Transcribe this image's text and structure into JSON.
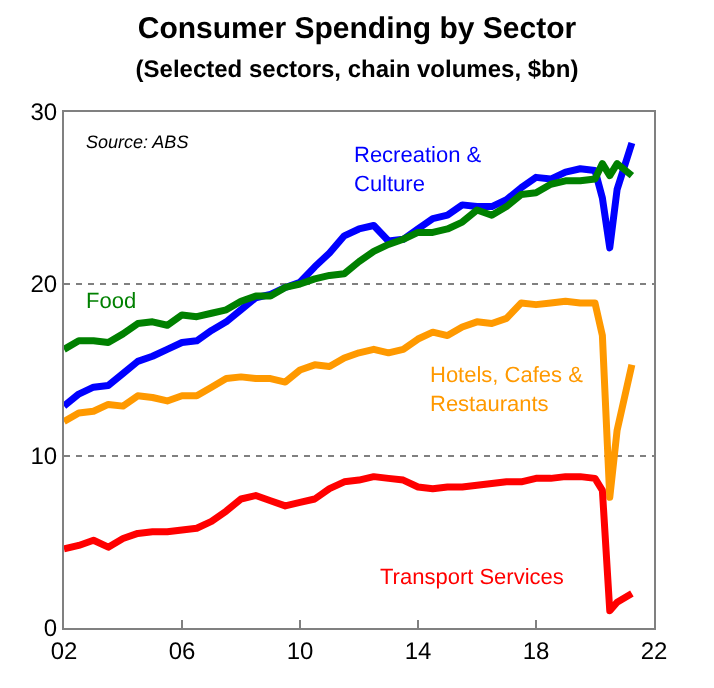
{
  "chart_data": {
    "type": "line",
    "title": "Consumer Spending by Sector",
    "subtitle": "(Selected sectors, chain volumes, $bn)",
    "annotations": [
      "Source: ABS"
    ],
    "xlim": [
      2002,
      2022
    ],
    "xticks": [
      {
        "value": 2002,
        "label": "02"
      },
      {
        "value": 2006,
        "label": "06"
      },
      {
        "value": 2010,
        "label": "10"
      },
      {
        "value": 2014,
        "label": "14"
      },
      {
        "value": 2018,
        "label": "18"
      },
      {
        "value": 2022,
        "label": "22"
      }
    ],
    "ylim": [
      0,
      30
    ],
    "yticks": [
      0,
      10,
      20,
      30
    ],
    "grid": "y",
    "legend": false,
    "line_style": "solid",
    "marker": "none",
    "x": [
      2002,
      2002.5,
      2003,
      2003.5,
      2004,
      2004.5,
      2005,
      2005.5,
      2006,
      2006.5,
      2007,
      2007.5,
      2008,
      2008.5,
      2009,
      2009.5,
      2010,
      2010.5,
      2011,
      2011.5,
      2012,
      2012.5,
      2013,
      2013.5,
      2014,
      2014.5,
      2015,
      2015.5,
      2016,
      2016.5,
      2017,
      2017.5,
      2018,
      2018.5,
      2019,
      2019.5,
      2020,
      2020.25,
      2020.5,
      2020.75,
      2021.25
    ],
    "series": [
      {
        "name": "Recreation & Culture",
        "color": "#0000ff",
        "values": [
          12.9,
          13.6,
          14.0,
          14.1,
          14.8,
          15.5,
          15.8,
          16.2,
          16.6,
          16.7,
          17.3,
          17.8,
          18.5,
          19.2,
          19.4,
          19.8,
          20.1,
          21.0,
          21.8,
          22.8,
          23.2,
          23.4,
          22.5,
          22.6,
          23.2,
          23.8,
          24.0,
          24.6,
          24.5,
          24.5,
          24.9,
          25.6,
          26.2,
          26.1,
          26.5,
          26.7,
          26.6,
          25.0,
          22.1,
          25.5,
          28.2
        ]
      },
      {
        "name": "Food",
        "color": "#008000",
        "values": [
          16.2,
          16.7,
          16.7,
          16.6,
          17.1,
          17.7,
          17.8,
          17.6,
          18.2,
          18.1,
          18.3,
          18.5,
          19.0,
          19.3,
          19.3,
          19.8,
          20.0,
          20.3,
          20.5,
          20.6,
          21.3,
          21.9,
          22.3,
          22.6,
          23.0,
          23.0,
          23.2,
          23.6,
          24.3,
          24.0,
          24.5,
          25.2,
          25.3,
          25.8,
          26.0,
          26.0,
          26.1,
          27.0,
          26.3,
          27.0,
          26.3
        ]
      },
      {
        "name": "Hotels, Cafes & Restaurants",
        "color": "#ff9900",
        "values": [
          12.0,
          12.5,
          12.6,
          13.0,
          12.9,
          13.5,
          13.4,
          13.2,
          13.5,
          13.5,
          14.0,
          14.5,
          14.6,
          14.5,
          14.5,
          14.3,
          15.0,
          15.3,
          15.2,
          15.7,
          16.0,
          16.2,
          16.0,
          16.2,
          16.8,
          17.2,
          17.0,
          17.5,
          17.8,
          17.7,
          18.0,
          18.9,
          18.8,
          18.9,
          19.0,
          18.9,
          18.9,
          17.0,
          7.6,
          11.5,
          15.3
        ]
      },
      {
        "name": "Transport Services",
        "color": "#ff0000",
        "values": [
          4.6,
          4.8,
          5.1,
          4.7,
          5.2,
          5.5,
          5.6,
          5.6,
          5.7,
          5.8,
          6.2,
          6.8,
          7.5,
          7.7,
          7.4,
          7.1,
          7.3,
          7.5,
          8.1,
          8.5,
          8.6,
          8.8,
          8.7,
          8.6,
          8.2,
          8.1,
          8.2,
          8.2,
          8.3,
          8.4,
          8.5,
          8.5,
          8.7,
          8.7,
          8.8,
          8.8,
          8.7,
          8.0,
          1.0,
          1.5,
          2.0
        ]
      }
    ]
  }
}
